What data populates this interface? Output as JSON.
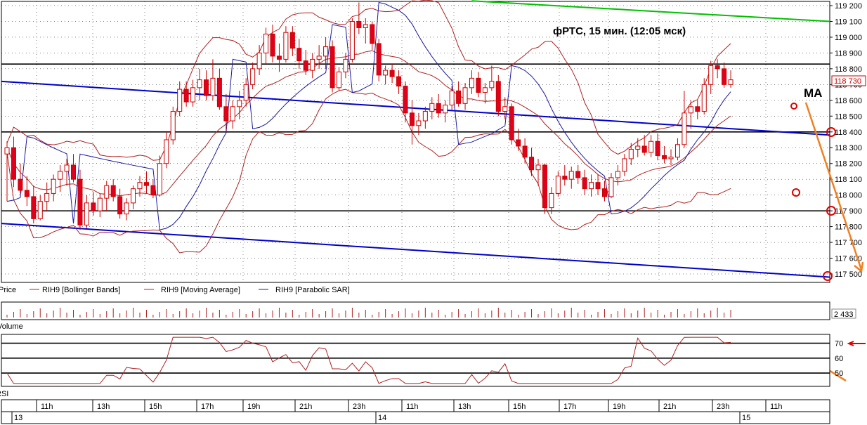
{
  "title": "фРТС,  15 мин.  (12:05 мск)",
  "ma_annotation": "MA",
  "price_axis": {
    "ticks": [
      "119 200",
      "119 100",
      "119 000",
      "118 900",
      "118 800",
      "118 700",
      "118 600",
      "118 500",
      "118 400",
      "118 300",
      "118 200",
      "118 100",
      "118 000",
      "117 900",
      "117 800",
      "117 700",
      "117 600",
      "117 500"
    ],
    "current_badge": "118 730"
  },
  "legend": [
    {
      "label": "Price"
    },
    {
      "label": "RIH9 [Bollinger Bands]"
    },
    {
      "label": "RIH9 [Moving Average]"
    },
    {
      "label": "RIH9 [Parabolic SAR]"
    }
  ],
  "volume": {
    "label": "Volume",
    "badge": "2 433"
  },
  "rsi": {
    "label": "RSI",
    "ticks": [
      "70",
      "60",
      "50"
    ]
  },
  "time_axis": {
    "hours": [
      "11h",
      "13h",
      "15h",
      "17h",
      "19h",
      "21h",
      "23h",
      "11h",
      "13h",
      "15h",
      "17h",
      "19h",
      "21h",
      "23h",
      "11h"
    ],
    "days": [
      "13",
      "14",
      "15"
    ]
  },
  "colors": {
    "candle_up": "#ffffff",
    "candle_down": "#e0001b",
    "candle_edge": "#cc0000",
    "bollinger": "#b02020",
    "sar": "#1a1aa0",
    "trend_blue": "#0000c8",
    "trend_green": "#00c000",
    "annotation": "#f08020",
    "marker": "#e00000"
  },
  "chart_data": {
    "type": "candlestick",
    "title": "фРТС,  15 мин.  (12:05 мск)",
    "y_range": [
      117450,
      119220
    ],
    "bars": [
      {
        "o": 118260,
        "h": 118340,
        "l": 117960,
        "c": 118300
      },
      {
        "o": 118300,
        "h": 118370,
        "l": 118050,
        "c": 118100
      },
      {
        "o": 118100,
        "h": 118200,
        "l": 118010,
        "c": 118030
      },
      {
        "o": 118030,
        "h": 118120,
        "l": 117930,
        "c": 117990
      },
      {
        "o": 117990,
        "h": 118060,
        "l": 117820,
        "c": 117850
      },
      {
        "o": 117850,
        "h": 118000,
        "l": 117840,
        "c": 117960
      },
      {
        "o": 117960,
        "h": 118080,
        "l": 117900,
        "c": 118010
      },
      {
        "o": 118010,
        "h": 118130,
        "l": 117960,
        "c": 118100
      },
      {
        "o": 118100,
        "h": 118190,
        "l": 118020,
        "c": 118150
      },
      {
        "o": 118150,
        "h": 118230,
        "l": 118060,
        "c": 118190
      },
      {
        "o": 118190,
        "h": 118260,
        "l": 118080,
        "c": 118100
      },
      {
        "o": 118100,
        "h": 118160,
        "l": 117780,
        "c": 117810
      },
      {
        "o": 117810,
        "h": 118000,
        "l": 117790,
        "c": 117950
      },
      {
        "o": 117950,
        "h": 118020,
        "l": 117870,
        "c": 117900
      },
      {
        "o": 117900,
        "h": 118010,
        "l": 117860,
        "c": 117980
      },
      {
        "o": 117980,
        "h": 118090,
        "l": 117900,
        "c": 118060
      },
      {
        "o": 118060,
        "h": 118100,
        "l": 117960,
        "c": 117990
      },
      {
        "o": 117990,
        "h": 118040,
        "l": 117850,
        "c": 117880
      },
      {
        "o": 117880,
        "h": 117980,
        "l": 117840,
        "c": 117950
      },
      {
        "o": 117950,
        "h": 118060,
        "l": 117910,
        "c": 118040
      },
      {
        "o": 118040,
        "h": 118120,
        "l": 117990,
        "c": 118080
      },
      {
        "o": 118080,
        "h": 118150,
        "l": 118010,
        "c": 118060
      },
      {
        "o": 118060,
        "h": 118100,
        "l": 117980,
        "c": 118000
      },
      {
        "o": 118000,
        "h": 118250,
        "l": 117990,
        "c": 118200
      },
      {
        "o": 118200,
        "h": 118400,
        "l": 118170,
        "c": 118350
      },
      {
        "o": 118350,
        "h": 118560,
        "l": 118320,
        "c": 118530
      },
      {
        "o": 118530,
        "h": 118720,
        "l": 118500,
        "c": 118670
      },
      {
        "o": 118670,
        "h": 118720,
        "l": 118560,
        "c": 118590
      },
      {
        "o": 118590,
        "h": 118730,
        "l": 118560,
        "c": 118680
      },
      {
        "o": 118680,
        "h": 118800,
        "l": 118600,
        "c": 118730
      },
      {
        "o": 118730,
        "h": 118790,
        "l": 118600,
        "c": 118630
      },
      {
        "o": 118630,
        "h": 118860,
        "l": 118600,
        "c": 118740
      },
      {
        "o": 118740,
        "h": 118800,
        "l": 118540,
        "c": 118560
      },
      {
        "o": 118560,
        "h": 118640,
        "l": 118400,
        "c": 118470
      },
      {
        "o": 118470,
        "h": 118600,
        "l": 118420,
        "c": 118560
      },
      {
        "o": 118560,
        "h": 118660,
        "l": 118480,
        "c": 118600
      },
      {
        "o": 118600,
        "h": 118740,
        "l": 118560,
        "c": 118700
      },
      {
        "o": 118700,
        "h": 118840,
        "l": 118670,
        "c": 118800
      },
      {
        "o": 118800,
        "h": 118950,
        "l": 118760,
        "c": 118900
      },
      {
        "o": 118900,
        "h": 119060,
        "l": 118830,
        "c": 119020
      },
      {
        "o": 119020,
        "h": 119080,
        "l": 118840,
        "c": 118880
      },
      {
        "o": 118880,
        "h": 118960,
        "l": 118780,
        "c": 118860
      },
      {
        "o": 118860,
        "h": 119070,
        "l": 118840,
        "c": 119030
      },
      {
        "o": 119030,
        "h": 119070,
        "l": 118880,
        "c": 118930
      },
      {
        "o": 118930,
        "h": 118990,
        "l": 118800,
        "c": 118850
      },
      {
        "o": 118850,
        "h": 118920,
        "l": 118760,
        "c": 118790
      },
      {
        "o": 118790,
        "h": 118900,
        "l": 118740,
        "c": 118860
      },
      {
        "o": 118860,
        "h": 118950,
        "l": 118800,
        "c": 118880
      },
      {
        "o": 118880,
        "h": 119000,
        "l": 118800,
        "c": 118940
      },
      {
        "o": 118940,
        "h": 118980,
        "l": 118650,
        "c": 118680
      },
      {
        "o": 118680,
        "h": 118810,
        "l": 118660,
        "c": 118780
      },
      {
        "o": 118780,
        "h": 118900,
        "l": 118740,
        "c": 118860
      },
      {
        "o": 118860,
        "h": 119120,
        "l": 118840,
        "c": 119100
      },
      {
        "o": 119100,
        "h": 119220,
        "l": 119020,
        "c": 119060
      },
      {
        "o": 119060,
        "h": 119120,
        "l": 118960,
        "c": 119080
      },
      {
        "o": 119080,
        "h": 119100,
        "l": 118920,
        "c": 118960
      },
      {
        "o": 118960,
        "h": 118990,
        "l": 118720,
        "c": 118760
      },
      {
        "o": 118760,
        "h": 118820,
        "l": 118700,
        "c": 118790
      },
      {
        "o": 118790,
        "h": 118830,
        "l": 118710,
        "c": 118750
      },
      {
        "o": 118750,
        "h": 118790,
        "l": 118640,
        "c": 118690
      },
      {
        "o": 118690,
        "h": 118720,
        "l": 118460,
        "c": 118520
      },
      {
        "o": 118520,
        "h": 118600,
        "l": 118320,
        "c": 118440
      },
      {
        "o": 118440,
        "h": 118520,
        "l": 118380,
        "c": 118470
      },
      {
        "o": 118470,
        "h": 118560,
        "l": 118420,
        "c": 118530
      },
      {
        "o": 118530,
        "h": 118620,
        "l": 118480,
        "c": 118580
      },
      {
        "o": 118580,
        "h": 118640,
        "l": 118490,
        "c": 118520
      },
      {
        "o": 118520,
        "h": 118600,
        "l": 118460,
        "c": 118570
      },
      {
        "o": 118570,
        "h": 118690,
        "l": 118540,
        "c": 118660
      },
      {
        "o": 118660,
        "h": 118720,
        "l": 118560,
        "c": 118580
      },
      {
        "o": 118580,
        "h": 118710,
        "l": 118540,
        "c": 118680
      },
      {
        "o": 118680,
        "h": 118790,
        "l": 118640,
        "c": 118740
      },
      {
        "o": 118740,
        "h": 118780,
        "l": 118620,
        "c": 118650
      },
      {
        "o": 118650,
        "h": 118710,
        "l": 118580,
        "c": 118680
      },
      {
        "o": 118680,
        "h": 118820,
        "l": 118660,
        "c": 118720
      },
      {
        "o": 118720,
        "h": 118760,
        "l": 118500,
        "c": 118530
      },
      {
        "o": 118530,
        "h": 118620,
        "l": 118480,
        "c": 118560
      },
      {
        "o": 118560,
        "h": 118580,
        "l": 118320,
        "c": 118350
      },
      {
        "o": 118350,
        "h": 118420,
        "l": 118280,
        "c": 118310
      },
      {
        "o": 118310,
        "h": 118360,
        "l": 118200,
        "c": 118240
      },
      {
        "o": 118240,
        "h": 118300,
        "l": 118120,
        "c": 118160
      },
      {
        "o": 118160,
        "h": 118230,
        "l": 118060,
        "c": 118190
      },
      {
        "o": 118190,
        "h": 118200,
        "l": 117880,
        "c": 117920
      },
      {
        "o": 117920,
        "h": 118050,
        "l": 117880,
        "c": 118010
      },
      {
        "o": 118010,
        "h": 118150,
        "l": 117990,
        "c": 118120
      },
      {
        "o": 118120,
        "h": 118190,
        "l": 118060,
        "c": 118100
      },
      {
        "o": 118100,
        "h": 118180,
        "l": 118040,
        "c": 118150
      },
      {
        "o": 118150,
        "h": 118190,
        "l": 118070,
        "c": 118110
      },
      {
        "o": 118110,
        "h": 118160,
        "l": 118000,
        "c": 118040
      },
      {
        "o": 118040,
        "h": 118130,
        "l": 117990,
        "c": 118080
      },
      {
        "o": 118080,
        "h": 118130,
        "l": 118000,
        "c": 118040
      },
      {
        "o": 118040,
        "h": 118090,
        "l": 117960,
        "c": 117990
      },
      {
        "o": 117990,
        "h": 118140,
        "l": 117980,
        "c": 118110
      },
      {
        "o": 118110,
        "h": 118190,
        "l": 118060,
        "c": 118150
      },
      {
        "o": 118150,
        "h": 118260,
        "l": 118120,
        "c": 118230
      },
      {
        "o": 118230,
        "h": 118330,
        "l": 118190,
        "c": 118290
      },
      {
        "o": 118290,
        "h": 118360,
        "l": 118240,
        "c": 118310
      },
      {
        "o": 118310,
        "h": 118380,
        "l": 118250,
        "c": 118270
      },
      {
        "o": 118270,
        "h": 118380,
        "l": 118240,
        "c": 118340
      },
      {
        "o": 118340,
        "h": 118390,
        "l": 118220,
        "c": 118250
      },
      {
        "o": 118250,
        "h": 118310,
        "l": 118200,
        "c": 118230
      },
      {
        "o": 118230,
        "h": 118290,
        "l": 118190,
        "c": 118240
      },
      {
        "o": 118240,
        "h": 118360,
        "l": 118220,
        "c": 118320
      },
      {
        "o": 118320,
        "h": 118660,
        "l": 118300,
        "c": 118520
      },
      {
        "o": 118520,
        "h": 118600,
        "l": 118420,
        "c": 118560
      },
      {
        "o": 118560,
        "h": 118600,
        "l": 118480,
        "c": 118530
      },
      {
        "o": 118530,
        "h": 118740,
        "l": 118510,
        "c": 118700
      },
      {
        "o": 118700,
        "h": 118850,
        "l": 118640,
        "c": 118820
      },
      {
        "o": 118820,
        "h": 118860,
        "l": 118740,
        "c": 118800
      },
      {
        "o": 118800,
        "h": 118840,
        "l": 118680,
        "c": 118700
      },
      {
        "o": 118700,
        "h": 118790,
        "l": 118680,
        "c": 118730
      }
    ],
    "horizontal_levels": [
      118830,
      118400,
      117900
    ],
    "trend_lines": [
      {
        "color": "blue",
        "from_bar": 0,
        "to_bar": 114,
        "from": 118720,
        "to": 118380
      },
      {
        "color": "blue",
        "from_bar": 0,
        "to_bar": 114,
        "from": 117820,
        "to": 117480
      },
      {
        "color": "green",
        "from_bar": 70,
        "to_bar": 114,
        "from": 119230,
        "to": 119100
      }
    ],
    "rsi_levels": [
      70,
      60,
      50
    ],
    "rsi_range": [
      42,
      75
    ]
  }
}
